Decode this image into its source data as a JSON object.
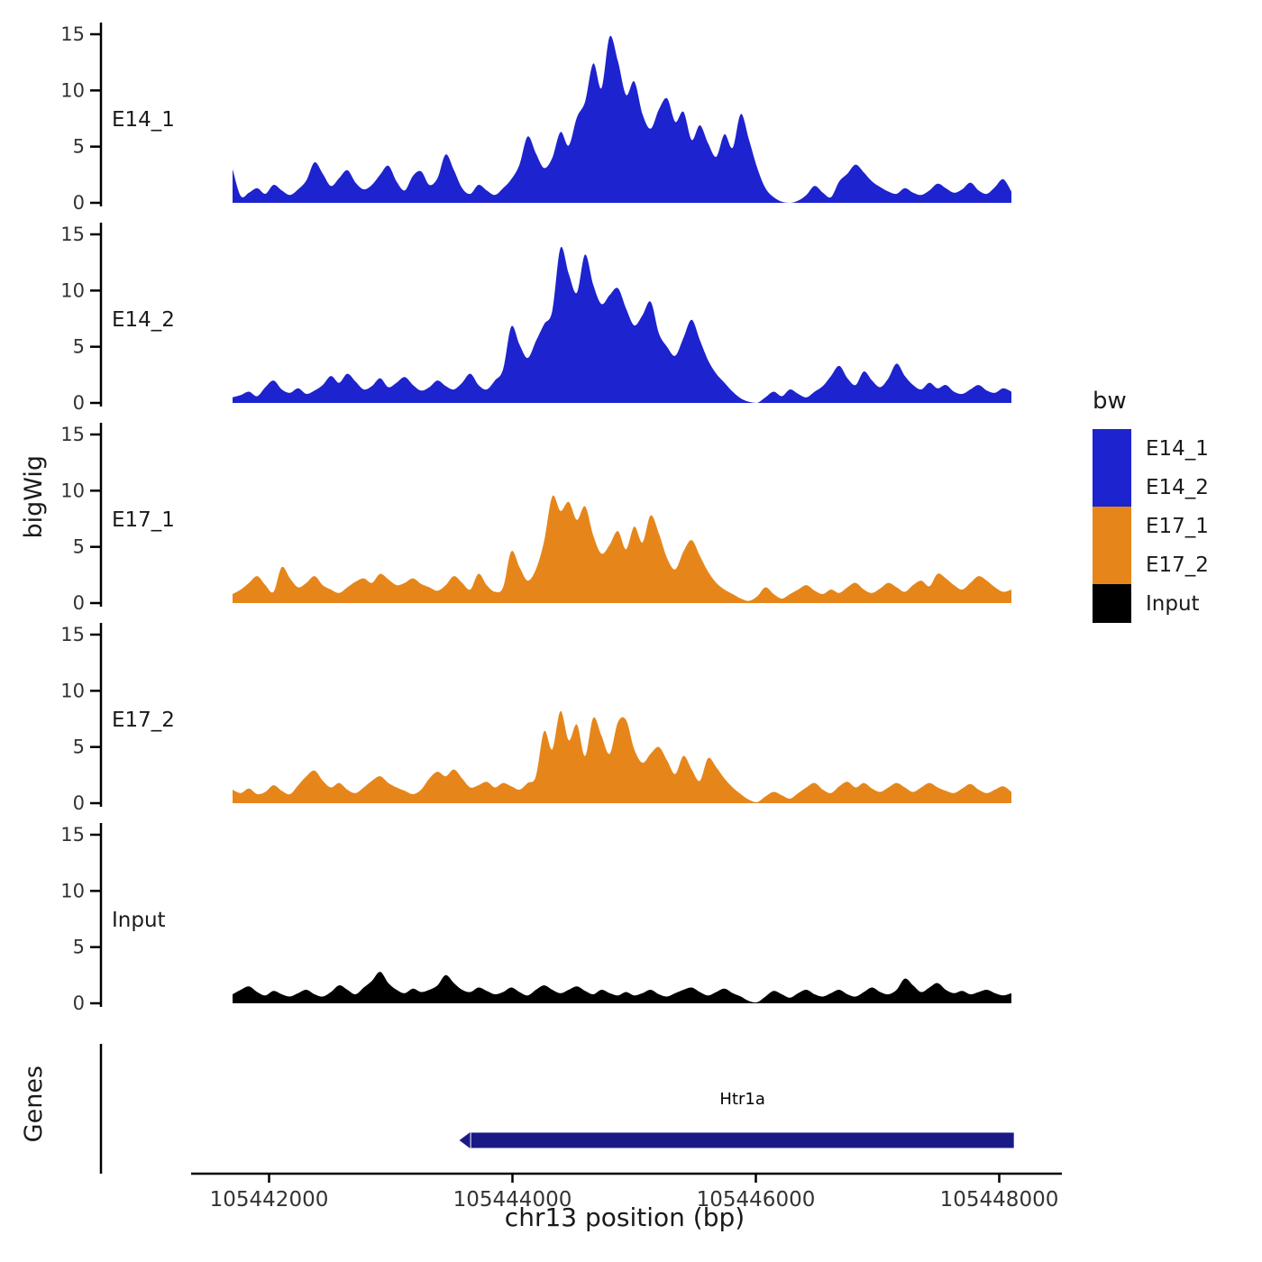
{
  "chart_data": {
    "type": "area",
    "title": "",
    "xlabel": "chr13 position (bp)",
    "ylabel": "bigWig",
    "genes_ylabel": "Genes",
    "x_start": 105441700,
    "x_end": 105448100,
    "xlim": [
      105441350,
      105448500
    ],
    "ylim": [
      0,
      15.5
    ],
    "grid": false,
    "legend_position": "right",
    "y_ticks": [
      {
        "value": 0,
        "label": "0"
      },
      {
        "value": 5,
        "label": "5"
      },
      {
        "value": 10,
        "label": "10"
      },
      {
        "value": 15,
        "label": "15"
      }
    ],
    "x_ticks": [
      {
        "value": 105442000,
        "label": "105442000"
      },
      {
        "value": 105444000,
        "label": "105444000"
      },
      {
        "value": 105446000,
        "label": "105446000"
      },
      {
        "value": 105448000,
        "label": "105448000"
      }
    ],
    "tracks": [
      {
        "name": "E14_1",
        "color": "#1d23ce",
        "values": [
          3.0,
          0.6,
          0.9,
          1.3,
          0.8,
          1.6,
          1.1,
          0.7,
          1.2,
          2.0,
          3.6,
          2.6,
          1.5,
          2.2,
          2.9,
          1.8,
          1.2,
          1.6,
          2.5,
          3.3,
          1.9,
          1.1,
          2.4,
          2.8,
          1.6,
          2.2,
          4.3,
          2.9,
          1.3,
          0.8,
          1.6,
          1.1,
          0.7,
          1.3,
          2.1,
          3.4,
          5.9,
          4.4,
          3.1,
          4.0,
          6.3,
          5.1,
          7.6,
          9.0,
          12.4,
          10.2,
          14.8,
          12.6,
          9.6,
          10.8,
          7.9,
          6.6,
          8.3,
          9.3,
          7.2,
          8.1,
          5.6,
          6.9,
          5.3,
          4.1,
          6.1,
          4.9,
          7.9,
          5.6,
          3.1,
          1.3,
          0.5,
          0.1,
          0.0,
          0.2,
          0.7,
          1.5,
          0.9,
          0.5,
          1.9,
          2.6,
          3.4,
          2.7,
          1.9,
          1.4,
          1.0,
          0.8,
          1.3,
          0.9,
          0.7,
          1.1,
          1.7,
          1.3,
          0.9,
          1.2,
          1.8,
          1.1,
          0.8,
          1.4,
          2.1,
          1.0
        ]
      },
      {
        "name": "E14_2",
        "color": "#1d23ce",
        "values": [
          0.5,
          0.7,
          1.0,
          0.6,
          1.4,
          2.0,
          1.2,
          0.9,
          1.3,
          0.8,
          1.1,
          1.6,
          2.4,
          1.8,
          2.6,
          1.9,
          1.2,
          1.5,
          2.2,
          1.4,
          1.8,
          2.3,
          1.6,
          1.1,
          1.4,
          2.0,
          1.5,
          1.2,
          1.8,
          2.6,
          1.6,
          1.2,
          2.0,
          3.0,
          6.8,
          5.2,
          4.0,
          5.5,
          7.0,
          8.2,
          13.8,
          11.5,
          9.8,
          13.2,
          10.5,
          8.8,
          9.6,
          10.2,
          8.4,
          6.9,
          7.8,
          9.0,
          6.2,
          5.0,
          4.2,
          5.8,
          7.4,
          5.6,
          3.8,
          2.6,
          1.8,
          1.0,
          0.4,
          0.1,
          0.0,
          0.5,
          1.0,
          0.6,
          1.2,
          0.8,
          0.5,
          1.0,
          1.5,
          2.4,
          3.3,
          2.2,
          1.6,
          2.8,
          2.0,
          1.4,
          2.2,
          3.5,
          2.4,
          1.6,
          1.2,
          1.8,
          1.3,
          1.6,
          1.0,
          0.8,
          1.2,
          1.6,
          1.1,
          0.9,
          1.3,
          1.0
        ]
      },
      {
        "name": "E17_1",
        "color": "#e6861a",
        "values": [
          0.8,
          1.2,
          1.8,
          2.4,
          1.6,
          1.0,
          3.2,
          2.2,
          1.4,
          1.8,
          2.4,
          1.6,
          1.2,
          0.9,
          1.4,
          1.9,
          2.2,
          1.8,
          2.6,
          2.1,
          1.6,
          1.8,
          2.2,
          1.7,
          1.4,
          1.1,
          1.6,
          2.4,
          1.8,
          1.2,
          2.6,
          1.6,
          1.0,
          1.4,
          4.6,
          3.2,
          2.0,
          3.0,
          5.5,
          9.5,
          8.2,
          9.0,
          7.4,
          8.6,
          6.0,
          4.4,
          5.2,
          6.4,
          4.8,
          6.8,
          5.4,
          7.8,
          6.2,
          4.0,
          3.0,
          4.6,
          5.6,
          4.2,
          2.8,
          1.8,
          1.2,
          0.8,
          0.4,
          0.2,
          0.6,
          1.4,
          0.8,
          0.4,
          0.8,
          1.2,
          1.6,
          1.1,
          0.8,
          1.2,
          0.9,
          1.4,
          1.8,
          1.2,
          0.9,
          1.3,
          1.8,
          1.4,
          1.0,
          1.6,
          2.0,
          1.5,
          2.6,
          2.2,
          1.6,
          1.2,
          1.8,
          2.4,
          2.0,
          1.4,
          1.0,
          1.2
        ]
      },
      {
        "name": "E17_2",
        "color": "#e6861a",
        "values": [
          1.2,
          0.9,
          1.3,
          0.8,
          1.0,
          1.6,
          1.1,
          0.8,
          1.6,
          2.4,
          2.9,
          2.0,
          1.4,
          1.8,
          1.2,
          0.9,
          1.4,
          2.0,
          2.4,
          1.8,
          1.4,
          1.1,
          0.8,
          1.2,
          2.2,
          2.8,
          2.4,
          3.0,
          2.2,
          1.4,
          1.6,
          1.9,
          1.4,
          1.8,
          1.5,
          1.2,
          1.8,
          2.4,
          6.4,
          4.8,
          8.2,
          5.6,
          7.0,
          4.2,
          7.6,
          6.0,
          4.4,
          7.2,
          7.4,
          4.8,
          3.6,
          4.4,
          5.0,
          3.8,
          2.6,
          4.2,
          3.0,
          2.0,
          4.0,
          3.2,
          2.2,
          1.4,
          0.8,
          0.3,
          0.1,
          0.6,
          1.0,
          0.7,
          0.4,
          0.9,
          1.4,
          1.8,
          1.2,
          0.9,
          1.5,
          1.9,
          1.4,
          1.8,
          1.3,
          1.0,
          1.4,
          1.8,
          1.4,
          1.0,
          1.4,
          1.8,
          1.4,
          1.1,
          0.9,
          1.3,
          1.7,
          1.2,
          0.9,
          1.2,
          1.5,
          1.0
        ]
      },
      {
        "name": "Input",
        "color": "#000000",
        "values": [
          0.8,
          1.2,
          1.5,
          1.0,
          0.7,
          1.1,
          0.8,
          0.6,
          0.9,
          1.2,
          0.8,
          0.6,
          1.0,
          1.6,
          1.2,
          0.8,
          1.4,
          2.0,
          2.8,
          1.8,
          1.2,
          0.9,
          1.3,
          1.0,
          1.2,
          1.6,
          2.5,
          1.8,
          1.2,
          1.0,
          1.4,
          1.1,
          0.8,
          1.0,
          1.4,
          1.0,
          0.7,
          1.2,
          1.6,
          1.2,
          0.9,
          1.2,
          1.5,
          1.1,
          0.8,
          1.2,
          0.9,
          0.7,
          1.0,
          0.7,
          0.9,
          1.2,
          0.8,
          0.6,
          0.9,
          1.2,
          1.4,
          1.0,
          0.7,
          1.0,
          1.3,
          0.9,
          0.6,
          0.2,
          0.1,
          0.6,
          1.1,
          0.8,
          0.5,
          0.9,
          1.2,
          0.8,
          0.6,
          0.9,
          1.2,
          0.8,
          0.6,
          1.0,
          1.4,
          1.0,
          0.8,
          1.2,
          2.2,
          1.6,
          1.0,
          1.4,
          1.8,
          1.2,
          0.9,
          1.1,
          0.8,
          1.0,
          1.2,
          0.9,
          0.7,
          0.9
        ]
      }
    ],
    "gene": {
      "name": "Htr1a",
      "start": 105443660,
      "end": 105448120,
      "strand": "-",
      "color": "#1a1a87"
    },
    "legend": {
      "title": "bw",
      "items": [
        {
          "label": "E14_1",
          "color": "#1d23ce"
        },
        {
          "label": "E14_2",
          "color": "#1d23ce"
        },
        {
          "label": "E17_1",
          "color": "#e6861a"
        },
        {
          "label": "E17_2",
          "color": "#e6861a"
        },
        {
          "label": "Input",
          "color": "#000000"
        }
      ]
    }
  }
}
